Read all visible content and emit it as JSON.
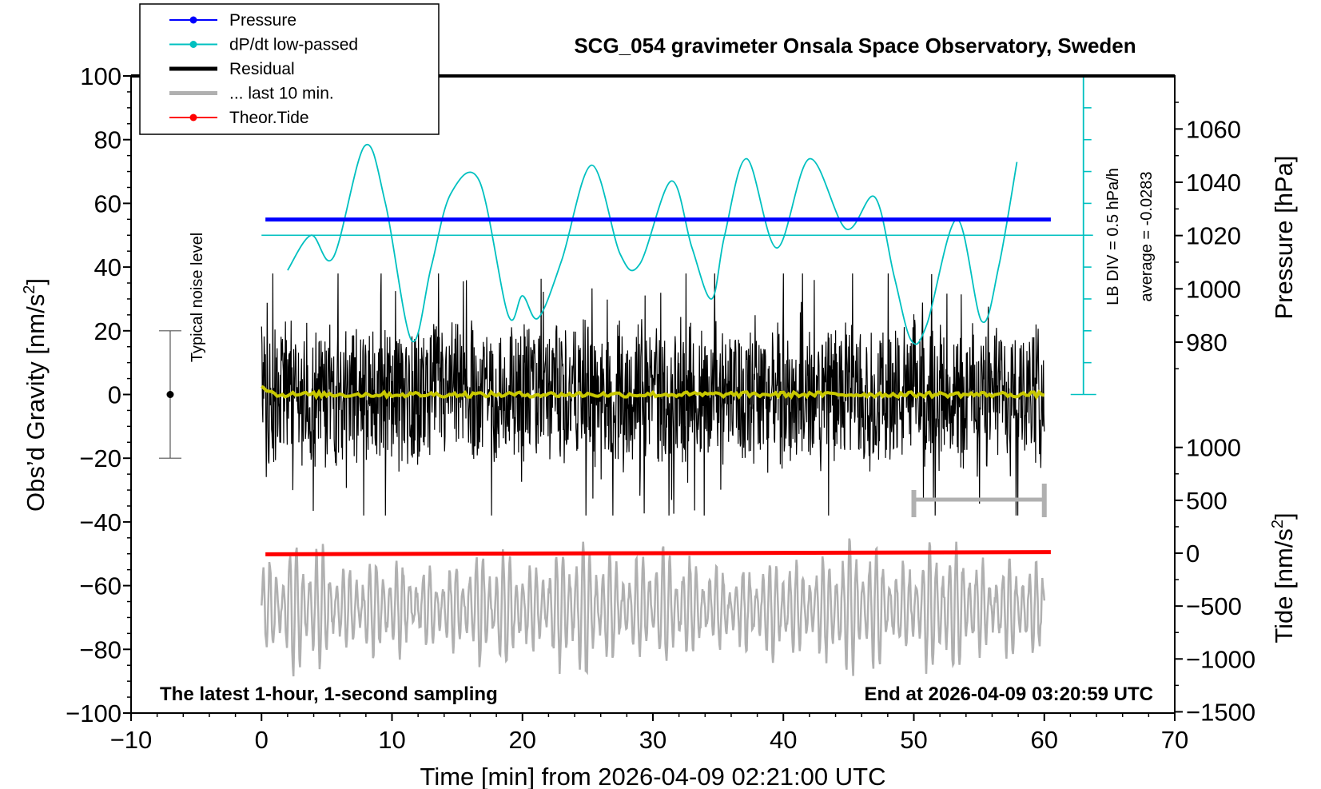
{
  "chart_data": {
    "type": "line",
    "title": "SCG_054 gravimeter Onsala Space Observatory, Sweden",
    "xlabel": "Time [min] from 2026-04-09 02:21:00 UTC",
    "ylabel_main": "Obs’d Gravity [nm/s",
    "ylabel_main_sup": "2",
    "ylabel_main_end": "]",
    "ylabel_pressure": "Pressure [hPa]",
    "ylabel_tide": "Tide [nm/s",
    "ylabel_tide_sup": "2",
    "ylabel_tide_end": "]",
    "xlim": [
      -10,
      70
    ],
    "ylim": [
      -100,
      100
    ],
    "x_ticks": [
      "−10",
      "0",
      "10",
      "20",
      "30",
      "40",
      "50",
      "60",
      "70"
    ],
    "x_tick_values": [
      -10,
      0,
      10,
      20,
      30,
      40,
      50,
      60,
      70
    ],
    "y_ticks": [
      "−100",
      "−80",
      "−60",
      "−40",
      "−20",
      "0",
      "20",
      "40",
      "60",
      "80",
      "100"
    ],
    "y_tick_values": [
      -100,
      -80,
      -60,
      -40,
      -20,
      0,
      20,
      40,
      60,
      80,
      100
    ],
    "pressure_ticks": [
      "980",
      "1000",
      "1020",
      "1040",
      "1060"
    ],
    "pressure_tick_values": [
      980,
      1000,
      1020,
      1040,
      1060
    ],
    "pressure_range": [
      960,
      1075
    ],
    "tide_ticks": [
      "−1500",
      "−1000",
      "−500",
      "0",
      "500",
      "1000"
    ],
    "tide_tick_values": [
      -1500,
      -1000,
      -500,
      0,
      500,
      1000
    ],
    "tide_range": [
      -1500,
      1000
    ],
    "legend": [
      {
        "label": "Pressure",
        "color": "#0000ff",
        "style": "line-dot"
      },
      {
        "label": "dP/dt low-passed",
        "color": "#00c0c0",
        "style": "line-dot"
      },
      {
        "label": "Residual",
        "color": "#000000",
        "style": "thick"
      },
      {
        "label": "... last 10 min.",
        "color": "#b0b0b0",
        "style": "thick"
      },
      {
        "label": "Theor.Tide",
        "color": "#ff0000",
        "style": "line-dot"
      }
    ],
    "annotations": {
      "noise": "Typical noise level",
      "lb_div": "LB DIV = 0.5 hPa/h",
      "average": "average = -0.0283",
      "bottom_left": "The latest 1-hour, 1-second sampling",
      "bottom_right": "End at 2026-04-09 03:20:59 UTC"
    },
    "series": [
      {
        "name": "Pressure",
        "color": "#0000ff",
        "unit": "hPa",
        "x_range": [
          0.3,
          60.5
        ],
        "value": 1026
      },
      {
        "name": "Theor.Tide",
        "color": "#ff0000",
        "unit": "nm/s2",
        "x": [
          0.3,
          60.5
        ],
        "values": [
          -10,
          10
        ]
      },
      {
        "name": "dP/dt low-passed",
        "color": "#00c0c0",
        "unit": "obs-gravity-scale",
        "x": [
          2,
          3.8,
          5.5,
          7.9,
          9.5,
          11.5,
          13,
          14.5,
          16.7,
          18.9,
          20,
          21.2,
          23,
          25.3,
          27.5,
          29,
          31.4,
          33,
          34.5,
          35.5,
          37.2,
          39.5,
          42,
          44.8,
          47,
          48.5,
          49.8,
          51,
          53.3,
          55.2,
          56.5,
          57.9
        ],
        "values": [
          39,
          50,
          43,
          78,
          60,
          17,
          40,
          63,
          67,
          25,
          31,
          24,
          42,
          72,
          44,
          41,
          67,
          46,
          30,
          50,
          74,
          46,
          74,
          52,
          62,
          37,
          17,
          22,
          55,
          23,
          40,
          73
        ]
      },
      {
        "name": "Residual",
        "color": "#000000",
        "x_range": [
          0,
          60
        ],
        "amplitude": 25,
        "mean": 0
      },
      {
        "name": "Residual mean",
        "color": "#c8c800",
        "x_range": [
          0,
          60
        ],
        "values": [
          3,
          0
        ]
      },
      {
        "name": "... last 10 min.",
        "color": "#b0b0b0",
        "x_range": [
          0,
          60
        ],
        "center": -67,
        "amplitude": 22
      }
    ],
    "noise_bar": {
      "x": -7,
      "y": 0,
      "low": -20,
      "high": 20
    },
    "lb_div_scale": {
      "x": 63,
      "from": 0,
      "to": 100,
      "step": 10
    },
    "average_line": {
      "value": 50
    },
    "gray_bracket": {
      "x_start": 50,
      "x_end": 60,
      "y": -33
    }
  }
}
